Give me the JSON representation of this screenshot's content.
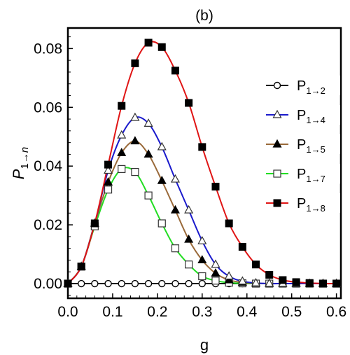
{
  "chart_data": {
    "type": "line",
    "title": "(b)",
    "xlabel": "g",
    "ylabel": "P1→n",
    "xlim": [
      0,
      0.61
    ],
    "ylim": [
      -0.005,
      0.087
    ],
    "x_ticks": [
      "0.0",
      "0.1",
      "0.2",
      "0.3",
      "0.4",
      "0.5",
      "0.6"
    ],
    "y_ticks": [
      "0.00",
      "0.02",
      "0.04",
      "0.06",
      "0.08"
    ],
    "grid": false,
    "legend_position": "right",
    "series": [
      {
        "name": "P1→2",
        "name_main": "P",
        "name_sub": "1→2",
        "color": "#000000",
        "marker": "open-circle",
        "x": [
          0,
          0.03,
          0.06,
          0.09,
          0.12,
          0.15,
          0.18,
          0.21,
          0.24,
          0.27,
          0.3,
          0.33,
          0.36,
          0.39,
          0.42,
          0.45,
          0.48,
          0.51,
          0.54,
          0.57,
          0.6
        ],
        "y": [
          0,
          0,
          0,
          0,
          0,
          0,
          0,
          0,
          0,
          0,
          0,
          0,
          0,
          0,
          0,
          0,
          0,
          0,
          0,
          0,
          0
        ]
      },
      {
        "name": "P1→4",
        "name_main": "P",
        "name_sub": "1→4",
        "color": "#1a1acc",
        "marker": "open-triangle",
        "x": [
          0,
          0.03,
          0.06,
          0.09,
          0.12,
          0.15,
          0.18,
          0.21,
          0.24,
          0.27,
          0.3,
          0.33,
          0.36,
          0.39,
          0.42,
          0.45,
          0.48,
          0.51,
          0.54,
          0.57,
          0.6
        ],
        "y": [
          0,
          0.0058,
          0.0205,
          0.0385,
          0.0505,
          0.0565,
          0.0545,
          0.0465,
          0.0355,
          0.025,
          0.0145,
          0.0065,
          0.0025,
          0.0008,
          0.0002,
          0,
          0,
          0,
          0,
          0,
          0
        ]
      },
      {
        "name": "P1→5",
        "name_main": "P",
        "name_sub": "1→5",
        "color": "#9a6a3a",
        "marker": "filled-triangle",
        "x": [
          0,
          0.03,
          0.06,
          0.09,
          0.12,
          0.15,
          0.18,
          0.21,
          0.24,
          0.27,
          0.3,
          0.33,
          0.36,
          0.39,
          0.42,
          0.45,
          0.48,
          0.51,
          0.54,
          0.57,
          0.6
        ],
        "y": [
          0,
          0.0058,
          0.0205,
          0.0345,
          0.0445,
          0.0485,
          0.044,
          0.035,
          0.025,
          0.015,
          0.008,
          0.0035,
          0.0012,
          0.0004,
          0.0001,
          0,
          0,
          0,
          0,
          0,
          0
        ]
      },
      {
        "name": "P1→7",
        "name_main": "P",
        "name_sub": "1→7",
        "color": "#22dd22",
        "marker": "open-square",
        "x": [
          0,
          0.03,
          0.06,
          0.09,
          0.12,
          0.15,
          0.18,
          0.21,
          0.24,
          0.27,
          0.3,
          0.33,
          0.36,
          0.39,
          0.42,
          0.45,
          0.48,
          0.51,
          0.54,
          0.57,
          0.6
        ],
        "y": [
          0,
          0.0058,
          0.0195,
          0.032,
          0.039,
          0.038,
          0.03,
          0.0205,
          0.012,
          0.0065,
          0.0025,
          0.001,
          0.0003,
          0.0001,
          0,
          0,
          0,
          0,
          0,
          0,
          0
        ]
      },
      {
        "name": "P1→8",
        "name_main": "P",
        "name_sub": "1→8",
        "color": "#e01515",
        "marker": "filled-square",
        "x": [
          0,
          0.03,
          0.06,
          0.09,
          0.12,
          0.15,
          0.18,
          0.21,
          0.24,
          0.27,
          0.3,
          0.33,
          0.36,
          0.39,
          0.42,
          0.45,
          0.48,
          0.51,
          0.54,
          0.57,
          0.6
        ],
        "y": [
          0,
          0.0058,
          0.0205,
          0.0405,
          0.0605,
          0.075,
          0.082,
          0.0805,
          0.0725,
          0.0615,
          0.0465,
          0.033,
          0.0205,
          0.0125,
          0.0065,
          0.003,
          0.0012,
          0.0005,
          0.0002,
          0,
          0
        ]
      }
    ]
  }
}
